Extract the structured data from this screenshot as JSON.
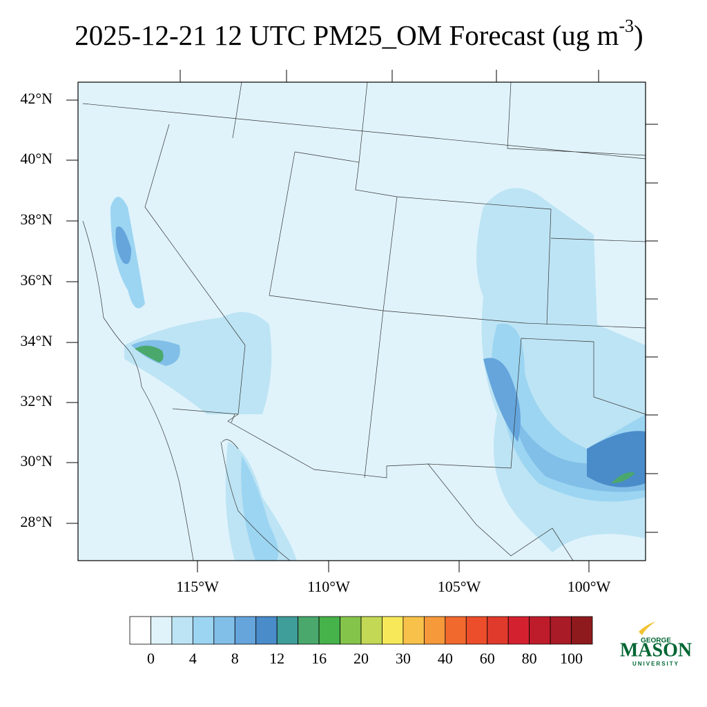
{
  "title": {
    "text": "2025-12-21 12 UTC PM25_OM Forecast (ug m",
    "superscript": "-3",
    "close": ")"
  },
  "map": {
    "latitude_labels": [
      "42°N",
      "40°N",
      "38°N",
      "36°N",
      "34°N",
      "32°N",
      "30°N",
      "28°N"
    ],
    "longitude_labels": [
      "115°W",
      "110°W",
      "105°W",
      "100°W"
    ]
  },
  "colorbar": {
    "colors": [
      "#ffffff",
      "#e0f3fb",
      "#bde4f4",
      "#9cd5f2",
      "#81bfe8",
      "#65a5dc",
      "#4a8bca",
      "#3f9d9a",
      "#4aa86d",
      "#45b24a",
      "#84c44a",
      "#c3d855",
      "#f7e85a",
      "#f8c149",
      "#f6993b",
      "#f2692e",
      "#ec4e2b",
      "#e03a2c",
      "#d42130",
      "#bf1c2b",
      "#a91b27",
      "#8e1a1e"
    ],
    "labels": [
      0,
      4,
      8,
      12,
      16,
      20,
      30,
      40,
      60,
      80,
      100
    ]
  },
  "logo": {
    "top": "GEORGE",
    "main": "MASON",
    "bottom": "UNIVERSITY"
  }
}
